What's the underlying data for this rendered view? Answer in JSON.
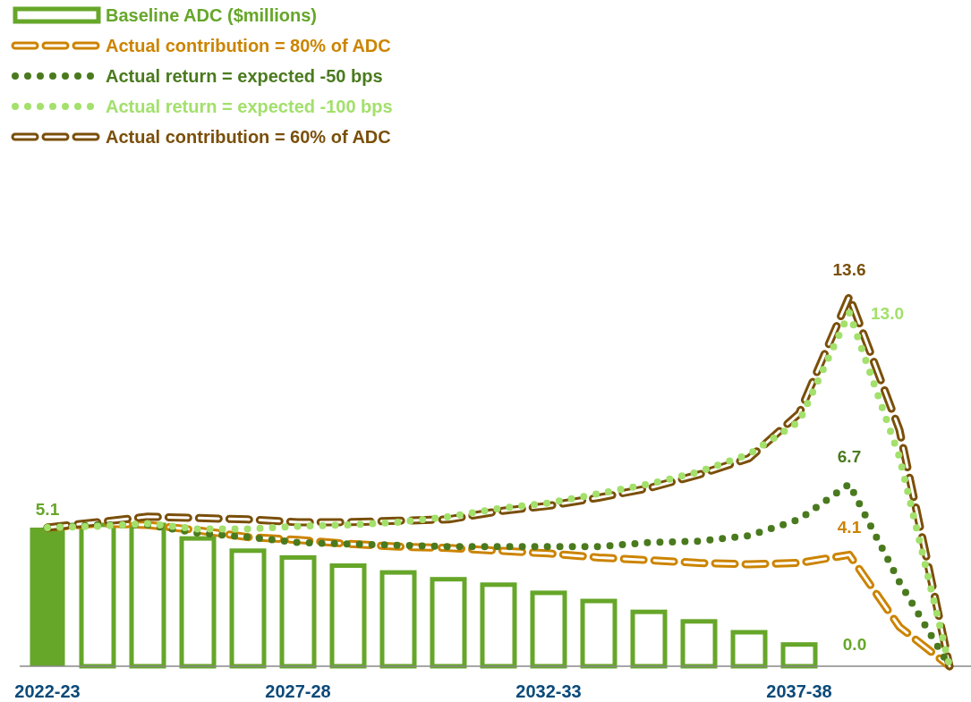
{
  "chart_data": {
    "type": "bar",
    "categories": [
      "2022-23",
      null,
      null,
      null,
      null,
      "2027-28",
      null,
      null,
      null,
      null,
      "2032-33",
      null,
      null,
      null,
      null,
      "2037-38",
      null,
      null,
      null
    ],
    "tick_labels": "x",
    "legend": "top left",
    "series": [
      {
        "name": "Baseline ADC ($millions)",
        "color": "#66a629",
        "values": [
          5.1,
          5.2,
          5.2,
          4.7,
          4.25,
          4.0,
          3.7,
          3.45,
          3.2,
          3.0,
          2.7,
          2.4,
          2.0,
          1.65,
          1.25,
          0.8,
          0,
          null,
          null
        ],
        "value_labels": [
          "5.1",
          null,
          null,
          null,
          null,
          null,
          null,
          null,
          null,
          null,
          null,
          null,
          null,
          null,
          null,
          null,
          "0.0",
          null,
          null
        ]
      },
      {
        "name": "Actual contribution = 80% of ADC",
        "type": "line",
        "line_style": "dashed",
        "color": "#cc8400",
        "values": [
          5.1,
          5.25,
          5.2,
          5.0,
          4.75,
          4.65,
          4.5,
          4.4,
          4.35,
          4.25,
          4.15,
          4.0,
          3.9,
          3.8,
          3.75,
          3.8,
          4.1,
          1.45,
          0
        ],
        "value_labels": [
          null,
          null,
          null,
          null,
          null,
          null,
          null,
          null,
          null,
          null,
          null,
          null,
          null,
          null,
          null,
          null,
          "4.1",
          null,
          null
        ]
      },
      {
        "name": "Actual return = expected -50 bps",
        "type": "line",
        "line_style": "dotted",
        "color": "#4a7a1e",
        "values": [
          5.1,
          5.2,
          5.2,
          4.9,
          4.75,
          4.55,
          4.5,
          4.45,
          4.4,
          4.4,
          4.4,
          4.4,
          4.55,
          4.6,
          4.8,
          5.4,
          6.7,
          3.1,
          0
        ],
        "value_labels": [
          null,
          null,
          null,
          null,
          null,
          null,
          null,
          null,
          null,
          null,
          null,
          null,
          null,
          null,
          null,
          null,
          "6.7",
          null,
          null
        ]
      },
      {
        "name": "Actual return = expected -100 bps",
        "type": "line",
        "line_style": "dotted",
        "color": "#a3e06c",
        "values": [
          5.1,
          5.15,
          5.25,
          5.05,
          5.05,
          5.15,
          5.2,
          5.3,
          5.5,
          5.8,
          6.0,
          6.35,
          6.7,
          7.15,
          7.8,
          9.0,
          13.0,
          7.7,
          0
        ],
        "value_labels": [
          null,
          null,
          null,
          null,
          null,
          null,
          null,
          null,
          null,
          null,
          null,
          null,
          null,
          null,
          null,
          null,
          "13.0",
          null,
          null
        ]
      },
      {
        "name": "Actual contribution = 60% of ADC",
        "type": "line",
        "line_style": "dashed",
        "color": "#7a4f0a",
        "values": [
          5.1,
          5.3,
          5.5,
          5.45,
          5.4,
          5.3,
          5.3,
          5.35,
          5.4,
          5.7,
          5.9,
          6.2,
          6.55,
          7.05,
          7.65,
          9.3,
          13.6,
          8.7,
          0
        ],
        "value_labels": [
          null,
          null,
          null,
          null,
          null,
          null,
          null,
          null,
          null,
          null,
          null,
          null,
          null,
          null,
          null,
          null,
          "13.6",
          null,
          null
        ]
      }
    ]
  }
}
